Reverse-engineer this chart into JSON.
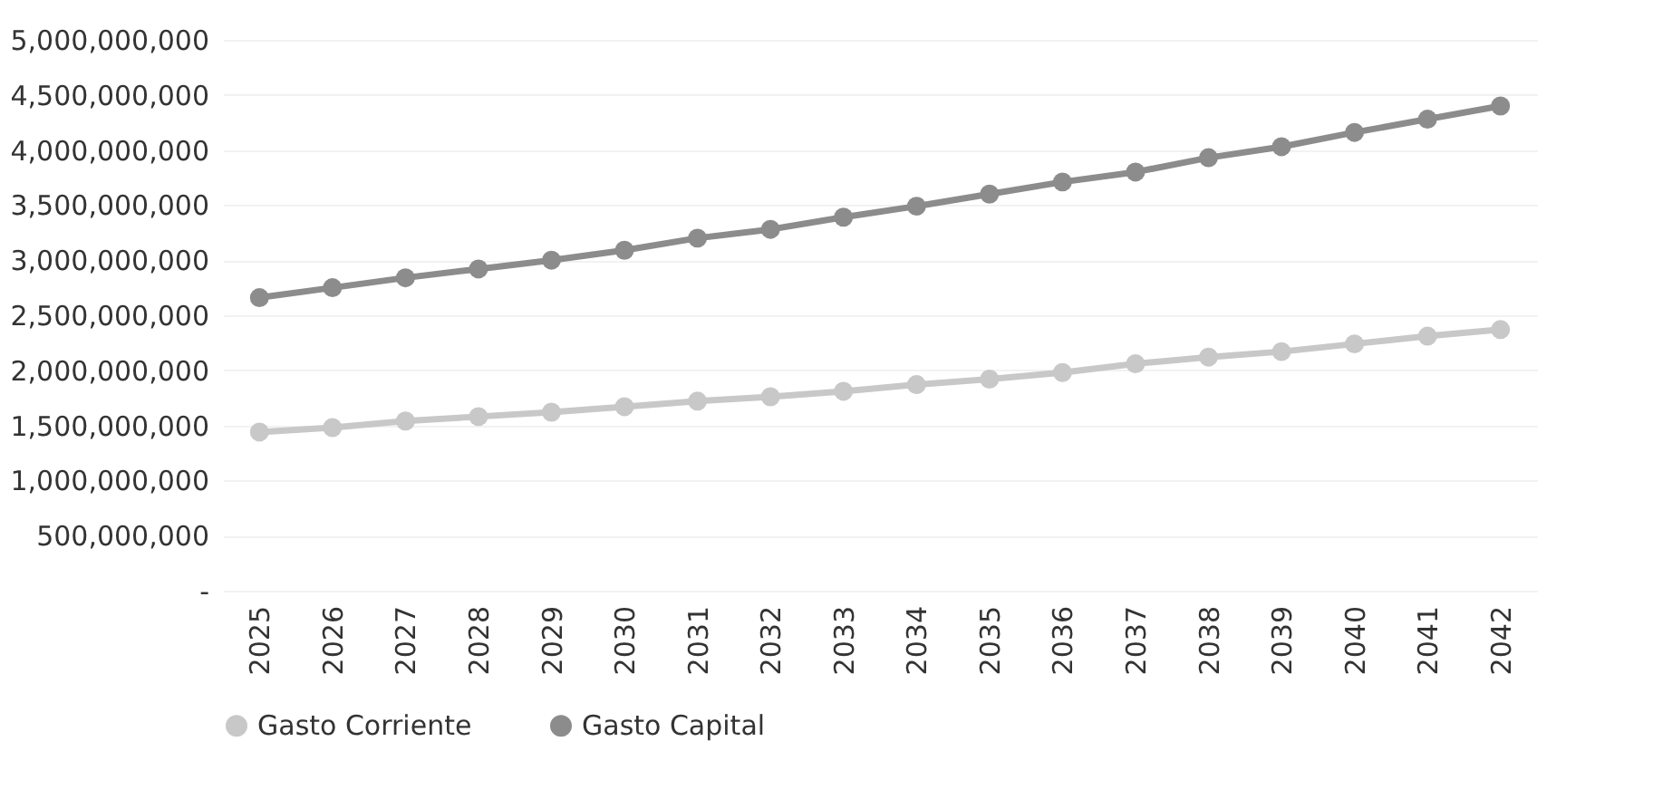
{
  "chart_data": {
    "type": "line",
    "categories": [
      "2025",
      "2026",
      "2027",
      "2028",
      "2029",
      "2030",
      "2031",
      "2032",
      "2033",
      "2034",
      "2035",
      "2036",
      "2037",
      "2038",
      "2039",
      "2040",
      "2041",
      "2042"
    ],
    "series": [
      {
        "name": "Gasto Corriente",
        "color": "#c8c8c8",
        "values": [
          1440000000,
          1480000000,
          1540000000,
          1580000000,
          1620000000,
          1670000000,
          1720000000,
          1760000000,
          1810000000,
          1870000000,
          1920000000,
          1980000000,
          2060000000,
          2120000000,
          2170000000,
          2240000000,
          2310000000,
          2370000000
        ]
      },
      {
        "name": "Gasto Capital",
        "color": "#8c8c8c",
        "values": [
          2660000000,
          2750000000,
          2840000000,
          2920000000,
          3000000000,
          3090000000,
          3200000000,
          3280000000,
          3390000000,
          3490000000,
          3600000000,
          3710000000,
          3800000000,
          3930000000,
          4030000000,
          4160000000,
          4280000000,
          4400000000
        ]
      }
    ],
    "ylim": [
      0,
      5000000000
    ],
    "yticks": [
      {
        "value": 0,
        "label": "-"
      },
      {
        "value": 500000000,
        "label": "500,000,000"
      },
      {
        "value": 1000000000,
        "label": "1,000,000,000"
      },
      {
        "value": 1500000000,
        "label": "1,500,000,000"
      },
      {
        "value": 2000000000,
        "label": "2,000,000,000"
      },
      {
        "value": 2500000000,
        "label": "2,500,000,000"
      },
      {
        "value": 3000000000,
        "label": "3,000,000,000"
      },
      {
        "value": 3500000000,
        "label": "3,500,000,000"
      },
      {
        "value": 4000000000,
        "label": "4,000,000,000"
      },
      {
        "value": 4500000000,
        "label": "4,500,000,000"
      },
      {
        "value": 5000000000,
        "label": "5,000,000,000"
      }
    ],
    "grid": "y",
    "legend": "bottom",
    "marker": "circle",
    "line_style": "solid"
  }
}
